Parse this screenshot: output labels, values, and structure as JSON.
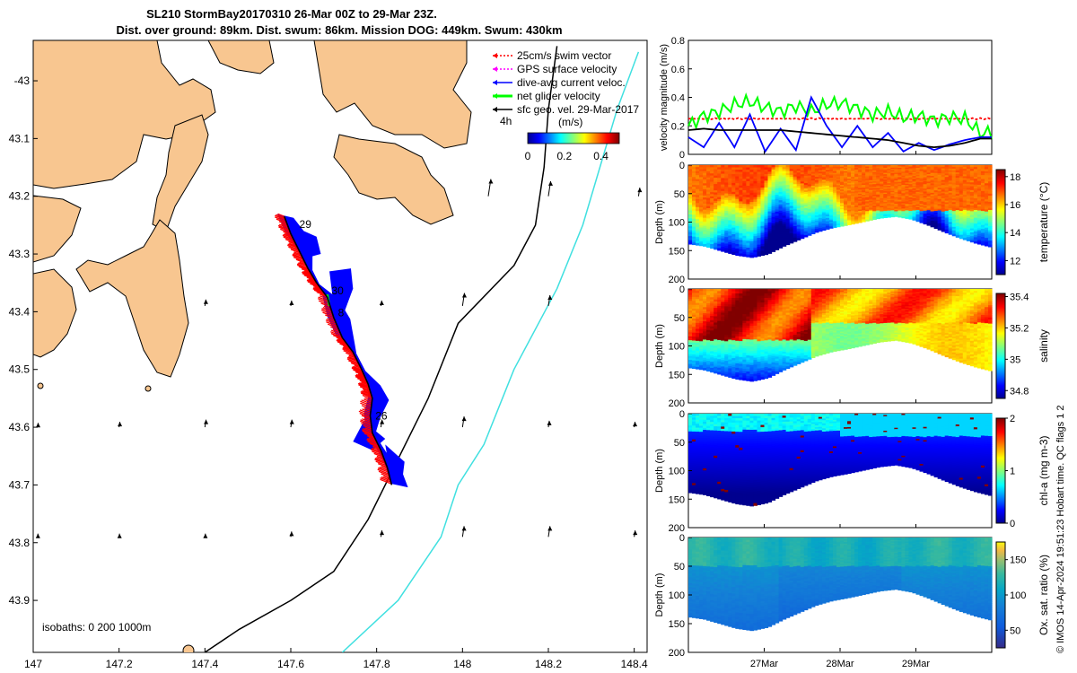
{
  "header": {
    "title_line1": "SL210 StormBay20170310 26-Mar 00Z to 29-Mar 23Z.",
    "title_line2": "Dist. over ground: 89km. Dist. swum: 86km. Mission DOG: 449km. Swum: 430km"
  },
  "credit": "© IMOS 14-Apr-2024 19:51:23 Hobart time. QC flags 1  2",
  "colors": {
    "land": "#f8c690",
    "track": "#ff0000",
    "dive_current": "#0000ff",
    "net": "#00ff00",
    "isobath200": "#000000",
    "isobath1000": "#40e0e0"
  },
  "chart_data": [
    {
      "type": "scatter",
      "panel": "map",
      "x_ticks": [
        147,
        147.2,
        147.4,
        147.6,
        147.8,
        148,
        148.2,
        148.4
      ],
      "y_ticks": [
        -43,
        -43.1,
        -43.2,
        -43.3,
        -43.4,
        -43.5,
        -43.6,
        -43.7,
        -43.8,
        -43.9
      ],
      "y_tick_labels": [
        "-43",
        "43.1",
        "43.2",
        "43.3",
        "43.4",
        "43.5",
        "43.6",
        "43.7",
        "43.8",
        "43.9"
      ],
      "xlim": [
        147,
        148.43
      ],
      "ylim": [
        -43.99,
        -42.93
      ],
      "legend": [
        {
          "label": "25cm/s swim vector",
          "color": "#ff0000"
        },
        {
          "label": "GPS surface velocity",
          "color": "#ff00ff"
        },
        {
          "label": "dive-avg current veloc.",
          "color": "#0000ff"
        },
        {
          "label": "net glider velocity",
          "color": "#00ff00"
        },
        {
          "label": "sfc geo. vel. 29-Mar-2017",
          "color": "#000000"
        }
      ],
      "legend_placement": "top-right",
      "colorbar": {
        "label": "(m/s)",
        "ticks": [
          "0",
          "0.2",
          "0.4"
        ],
        "range": [
          0,
          0.5
        ]
      },
      "scale_label": "4h",
      "isobath_label": "isobaths: 0   200  1000m",
      "day_labels": [
        {
          "text": "29",
          "lon": 147.62,
          "lat": -43.255
        },
        {
          "text": "30",
          "lon": 147.695,
          "lat": -43.37
        },
        {
          "text": "8",
          "lon": 147.71,
          "lat": -43.408
        },
        {
          "text": "26",
          "lon": 147.797,
          "lat": -43.587
        }
      ],
      "track": [
        [
          147.585,
          -43.235
        ],
        [
          147.6,
          -43.265
        ],
        [
          147.62,
          -43.295
        ],
        [
          147.64,
          -43.325
        ],
        [
          147.66,
          -43.35
        ],
        [
          147.685,
          -43.375
        ],
        [
          147.7,
          -43.41
        ],
        [
          147.72,
          -43.445
        ],
        [
          147.745,
          -43.47
        ],
        [
          147.765,
          -43.5
        ],
        [
          147.78,
          -43.525
        ],
        [
          147.79,
          -43.55
        ],
        [
          147.785,
          -43.58
        ],
        [
          147.79,
          -43.61
        ],
        [
          147.81,
          -43.64
        ],
        [
          147.825,
          -43.67
        ],
        [
          147.835,
          -43.7
        ]
      ],
      "isobath_200m": [
        [
          148.22,
          -42.94
        ],
        [
          148.2,
          -43.05
        ],
        [
          148.19,
          -43.15
        ],
        [
          148.17,
          -43.25
        ],
        [
          148.12,
          -43.32
        ],
        [
          147.99,
          -43.42
        ],
        [
          147.92,
          -43.55
        ],
        [
          147.84,
          -43.67
        ],
        [
          147.78,
          -43.76
        ],
        [
          147.7,
          -43.85
        ],
        [
          147.6,
          -43.9
        ],
        [
          147.48,
          -43.95
        ],
        [
          147.4,
          -43.99
        ]
      ],
      "isobath_1000m": [
        [
          148.41,
          -42.95
        ],
        [
          148.36,
          -43.05
        ],
        [
          148.32,
          -43.15
        ],
        [
          148.28,
          -43.25
        ],
        [
          148.22,
          -43.36
        ],
        [
          148.12,
          -43.5
        ],
        [
          148.05,
          -43.63
        ],
        [
          147.99,
          -43.7
        ],
        [
          147.95,
          -43.79
        ],
        [
          147.85,
          -43.9
        ],
        [
          147.72,
          -43.99
        ]
      ],
      "current_vectors": [
        [
          147.4,
          -43.39,
          0.06
        ],
        [
          147.6,
          -43.39,
          0.05
        ],
        [
          147.81,
          -43.39,
          0.05
        ],
        [
          148,
          -43.39,
          0.12
        ],
        [
          148.2,
          -43.39,
          0.1
        ],
        [
          147.01,
          -43.6,
          0.04
        ],
        [
          147.2,
          -43.6,
          0.05
        ],
        [
          147.4,
          -43.6,
          0.07
        ],
        [
          147.6,
          -43.6,
          0.07
        ],
        [
          147.81,
          -43.6,
          0.07
        ],
        [
          148,
          -43.6,
          0.1
        ],
        [
          148.2,
          -43.6,
          0.06
        ],
        [
          148.4,
          -43.6,
          0.05
        ],
        [
          147.01,
          -43.79,
          0.03
        ],
        [
          147.2,
          -43.79,
          0.03
        ],
        [
          147.4,
          -43.79,
          0.03
        ],
        [
          147.6,
          -43.79,
          0.05
        ],
        [
          147.81,
          -43.79,
          0.06
        ],
        [
          148,
          -43.79,
          0.1
        ],
        [
          148.2,
          -43.79,
          0.1
        ],
        [
          148.4,
          -43.79,
          0.06
        ],
        [
          148.41,
          -43.2,
          0.08
        ],
        [
          148.2,
          -43.2,
          0.14
        ],
        [
          148.06,
          -43.2,
          0.16
        ]
      ]
    },
    {
      "type": "line",
      "panel": "velocity",
      "ylabel": "velocity magnitude (m/s)",
      "ylim": [
        0,
        0.8
      ],
      "y_ticks": [
        0,
        0.2,
        0.4,
        0.6,
        0.8
      ],
      "x_range_days": [
        26,
        30
      ],
      "series": [
        {
          "color": "#ff0000",
          "values": [
            0.25,
            0.25,
            0.25,
            0.25,
            0.25,
            0.25,
            0.25,
            0.25,
            0.25,
            0.25,
            0.25,
            0.25,
            0.25,
            0.25,
            0.25,
            0.25,
            0.25,
            0.25,
            0.25,
            0.25
          ]
        },
        {
          "color": "#00ff00",
          "values": [
            0.2,
            0.27,
            0.3,
            0.35,
            0.37,
            0.33,
            0.3,
            0.34,
            0.3,
            0.35,
            0.36,
            0.32,
            0.28,
            0.3,
            0.26,
            0.27,
            0.24,
            0.26,
            0.25,
            0.15
          ]
        },
        {
          "color": "#0000ff",
          "values": [
            0.12,
            0.05,
            0.22,
            0.05,
            0.28,
            0.02,
            0.18,
            0.03,
            0.4,
            0.2,
            0.05,
            0.2,
            0.05,
            0.15,
            0.02,
            0.08,
            0.03,
            0.07,
            0.1,
            0.12
          ]
        },
        {
          "color": "#000000",
          "values": [
            0.17,
            0.18,
            0.17,
            0.17,
            0.17,
            0.17,
            0.17,
            0.16,
            0.15,
            0.14,
            0.13,
            0.12,
            0.11,
            0.1,
            0.08,
            0.06,
            0.05,
            0.06,
            0.08,
            0.11
          ]
        }
      ]
    },
    {
      "type": "heatmap",
      "panel": "temperature",
      "ylabel": "Depth (m)",
      "colorbar_label": "temperature (°C)",
      "colorbar_ticks": [
        "18",
        "16",
        "14",
        "12"
      ],
      "range": [
        11,
        18.5
      ],
      "bottom_depth": [
        138,
        142,
        150,
        158,
        162,
        156,
        142,
        130,
        118,
        110,
        105,
        99,
        93,
        90,
        95,
        105,
        117,
        128,
        137,
        144
      ]
    },
    {
      "type": "heatmap",
      "panel": "salinity",
      "ylabel": "Depth (m)",
      "colorbar_label": "salinity",
      "colorbar_ticks": [
        "35.4",
        "35.2",
        "35",
        "34.8"
      ],
      "range": [
        34.75,
        35.42
      ]
    },
    {
      "type": "heatmap",
      "panel": "chlorophyll",
      "ylabel": "Depth (m)",
      "colorbar_label": "chl-a (mg m-3)",
      "colorbar_ticks": [
        "2",
        "1",
        "0"
      ],
      "range": [
        0,
        2
      ]
    },
    {
      "type": "heatmap",
      "panel": "oxygen",
      "ylabel": "Depth (m)",
      "colorbar_label": "Ox. sat. ratio (%)",
      "colorbar_ticks": [
        "150",
        "100",
        "50"
      ],
      "range": [
        25,
        175
      ],
      "x_tick_labels": [
        "27Mar",
        "28Mar",
        "29Mar"
      ],
      "depth_ticks": [
        "0",
        "50",
        "100",
        "150",
        "200"
      ]
    }
  ]
}
